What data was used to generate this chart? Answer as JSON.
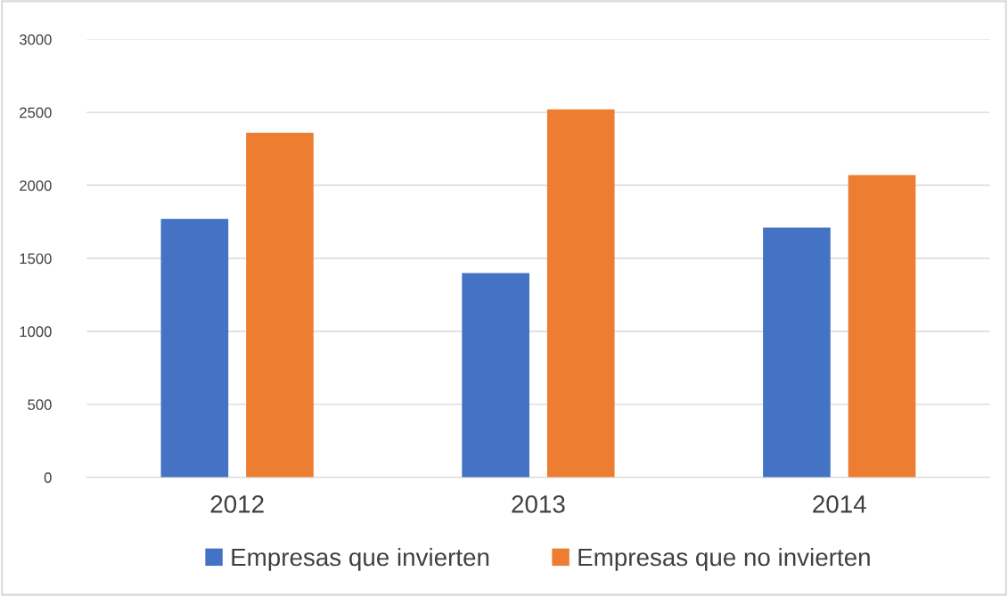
{
  "chart_data": {
    "type": "bar",
    "categories": [
      "2012",
      "2013",
      "2014"
    ],
    "series": [
      {
        "name": "Empresas que invierten",
        "color": "#4472c4",
        "values": [
          1770,
          1400,
          1710
        ]
      },
      {
        "name": "Empresas que no invierten",
        "color": "#ed7d31",
        "values": [
          2360,
          2520,
          2070
        ]
      }
    ],
    "ylim": [
      0,
      3000
    ],
    "yticks": [
      0,
      500,
      1000,
      1500,
      2000,
      2500,
      3000
    ],
    "grid": "y",
    "legend": "bottom"
  }
}
